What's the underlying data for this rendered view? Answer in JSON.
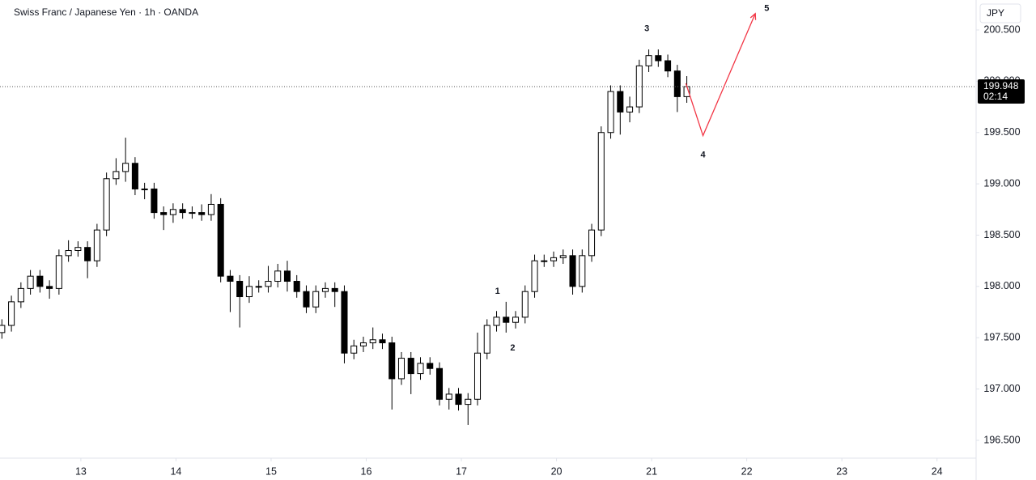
{
  "chart_data": {
    "type": "candlestick",
    "title": "Swiss Franc / Japanese Yen · 1h · OANDA",
    "currency": "JPY",
    "color": "#000000",
    "xlim": [
      -0.85,
      9.36
    ],
    "xticks": [
      {
        "value": 0,
        "label": "13"
      },
      {
        "value": 1,
        "label": "14"
      },
      {
        "value": 2,
        "label": "15"
      },
      {
        "value": 3,
        "label": "16"
      },
      {
        "value": 4,
        "label": "17"
      },
      {
        "value": 5,
        "label": "20"
      },
      {
        "value": 6,
        "label": "21"
      },
      {
        "value": 7,
        "label": "22"
      },
      {
        "value": 8,
        "label": "23"
      },
      {
        "value": 9,
        "label": "24"
      }
    ],
    "ylim": [
      196.334,
      200.792
    ],
    "yticks": [
      {
        "value": 196.5,
        "label": "196.500"
      },
      {
        "value": 197,
        "label": "197.000"
      },
      {
        "value": 197.5,
        "label": "197.500"
      },
      {
        "value": 198,
        "label": "198.000"
      },
      {
        "value": 198.5,
        "label": "198.500"
      },
      {
        "value": 199,
        "label": "199.000"
      },
      {
        "value": 199.5,
        "label": "199.500"
      },
      {
        "value": 200,
        "label": "200.000"
      },
      {
        "value": 200.5,
        "label": "200.500"
      }
    ],
    "x": [
      -0.83,
      -0.73,
      -0.63,
      -0.53,
      -0.43,
      -0.33,
      -0.23,
      -0.13,
      -0.03,
      0.07,
      0.17,
      0.27,
      0.37,
      0.47,
      0.57,
      0.67,
      0.77,
      0.87,
      0.97,
      1.07,
      1.17,
      1.27,
      1.37,
      1.47,
      1.57,
      1.67,
      1.77,
      1.87,
      1.97,
      2.07,
      2.17,
      2.27,
      2.37,
      2.47,
      2.57,
      2.67,
      2.77,
      2.87,
      2.97,
      3.07,
      3.17,
      3.27,
      3.37,
      3.47,
      3.57,
      3.67,
      3.77,
      3.87,
      3.97,
      4.07,
      4.17,
      4.27,
      4.37,
      4.47,
      4.57,
      4.67,
      4.77,
      4.87,
      4.97,
      5.07,
      5.17,
      5.27,
      5.37,
      5.47,
      5.57,
      5.67,
      5.77,
      5.87,
      5.97,
      6.07,
      6.17,
      6.27,
      6.37
    ],
    "open": [
      197.55,
      197.62,
      197.85,
      197.98,
      198.1,
      198.0,
      197.98,
      198.3,
      198.35,
      198.38,
      198.25,
      198.55,
      199.05,
      199.12,
      199.2,
      198.95,
      198.95,
      198.72,
      198.7,
      198.75,
      198.72,
      198.72,
      198.7,
      198.8,
      198.1,
      198.05,
      197.9,
      198.0,
      198.0,
      198.05,
      198.15,
      198.05,
      197.95,
      197.8,
      197.95,
      197.98,
      197.95,
      197.35,
      197.42,
      197.45,
      197.48,
      197.45,
      197.1,
      197.3,
      197.15,
      197.25,
      197.2,
      196.9,
      196.95,
      196.85,
      196.9,
      197.35,
      197.62,
      197.7,
      197.65,
      197.7,
      197.95,
      198.25,
      198.25,
      198.28,
      198.3,
      198.0,
      198.3,
      198.55,
      199.5,
      199.9,
      199.7,
      199.75,
      200.15,
      200.25,
      200.2,
      200.1,
      199.85
    ],
    "high": [
      197.68,
      197.91,
      198.04,
      198.16,
      198.16,
      198.06,
      198.36,
      198.45,
      198.44,
      198.44,
      198.61,
      199.11,
      199.25,
      199.45,
      199.26,
      199.01,
      199.01,
      198.78,
      198.81,
      198.81,
      198.78,
      198.8,
      198.9,
      198.86,
      198.16,
      198.11,
      198.1,
      198.06,
      198.2,
      198.22,
      198.25,
      198.11,
      198.01,
      198.01,
      198.04,
      198.04,
      198.01,
      197.48,
      197.51,
      197.6,
      197.54,
      197.51,
      197.36,
      197.36,
      197.31,
      197.31,
      197.26,
      197.01,
      197.01,
      196.96,
      197.55,
      197.68,
      197.76,
      197.85,
      197.76,
      198.01,
      198.31,
      198.31,
      198.34,
      198.36,
      198.36,
      198.36,
      198.61,
      199.56,
      199.96,
      199.96,
      199.85,
      200.21,
      200.31,
      200.31,
      200.26,
      200.16,
      200.05
    ],
    "low": [
      197.49,
      197.56,
      197.79,
      197.92,
      197.94,
      197.88,
      197.92,
      198.24,
      198.29,
      198.08,
      198.19,
      198.49,
      198.99,
      199.02,
      198.89,
      198.85,
      198.66,
      198.55,
      198.62,
      198.66,
      198.66,
      198.64,
      198.64,
      198.04,
      197.75,
      197.6,
      197.84,
      197.94,
      197.94,
      197.99,
      197.95,
      197.89,
      197.74,
      197.74,
      197.89,
      197.8,
      197.25,
      197.29,
      197.36,
      197.39,
      197.39,
      196.8,
      197.04,
      196.95,
      197.09,
      197.14,
      196.84,
      196.8,
      196.79,
      196.65,
      196.84,
      197.29,
      197.56,
      197.55,
      197.59,
      197.64,
      197.89,
      198.19,
      198.19,
      198.22,
      197.92,
      197.94,
      198.24,
      198.49,
      199.44,
      199.48,
      199.6,
      199.69,
      200.09,
      200.14,
      200.04,
      199.7,
      199.79
    ],
    "close": [
      197.62,
      197.85,
      197.98,
      198.1,
      198.0,
      197.98,
      198.3,
      198.35,
      198.38,
      198.25,
      198.55,
      199.05,
      199.12,
      199.2,
      198.95,
      198.95,
      198.72,
      198.7,
      198.75,
      198.72,
      198.72,
      198.7,
      198.8,
      198.1,
      198.05,
      197.9,
      198.0,
      198.0,
      198.05,
      198.15,
      198.05,
      197.95,
      197.8,
      197.95,
      197.98,
      197.95,
      197.35,
      197.42,
      197.45,
      197.48,
      197.45,
      197.1,
      197.3,
      197.15,
      197.25,
      197.2,
      196.9,
      196.95,
      196.85,
      196.9,
      197.35,
      197.62,
      197.7,
      197.65,
      197.7,
      197.95,
      198.25,
      198.25,
      198.28,
      198.3,
      198.0,
      198.3,
      198.55,
      199.5,
      199.9,
      199.7,
      199.75,
      200.15,
      200.25,
      200.2,
      200.1,
      199.85,
      199.948
    ],
    "last_price": 199.948,
    "countdown": "02:14",
    "projection": {
      "color": "#f23645",
      "x": [
        6.36,
        6.54,
        7.09
      ],
      "y": [
        199.98,
        199.47,
        200.66
      ]
    },
    "annotations": [
      {
        "text": "1",
        "x": 4.38,
        "y": 197.95
      },
      {
        "text": "2",
        "x": 4.54,
        "y": 197.4
      },
      {
        "text": "3",
        "x": 5.95,
        "y": 200.51
      },
      {
        "text": "4",
        "x": 6.54,
        "y": 199.28
      },
      {
        "text": "5",
        "x": 7.21,
        "y": 200.71
      }
    ]
  }
}
